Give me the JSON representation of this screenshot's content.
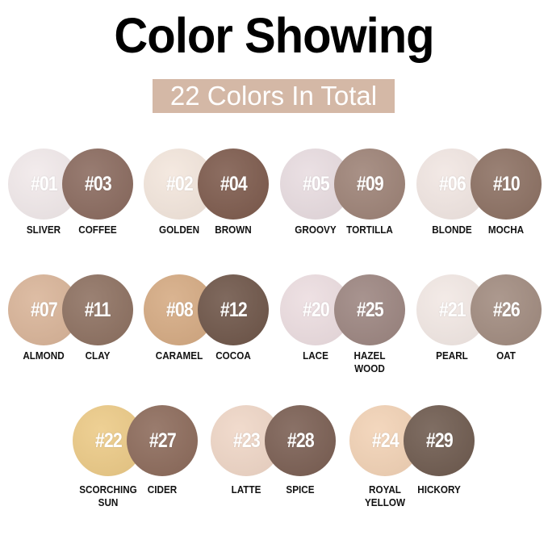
{
  "title": "Color Showing",
  "subtitle": "22 Colors In Total",
  "rows": [
    [
      [
        {
          "code": "#01",
          "name": "SLIVER",
          "color": "#f1e9ea"
        },
        {
          "code": "#03",
          "name": "COFFEE",
          "color": "#8a6a5e"
        }
      ],
      [
        {
          "code": "#02",
          "name": "GOLDEN",
          "color": "#f3e6dc"
        },
        {
          "code": "#04",
          "name": "BROWN",
          "color": "#7d5a4c"
        }
      ],
      [
        {
          "code": "#05",
          "name": "GROOVY",
          "color": "#e8dce0"
        },
        {
          "code": "#09",
          "name": "TORTILLA",
          "color": "#9d8276"
        }
      ],
      [
        {
          "code": "#06",
          "name": "BLONDE",
          "color": "#f1e6e2"
        },
        {
          "code": "#10",
          "name": "MOCHA",
          "color": "#8c7062"
        }
      ]
    ],
    [
      [
        {
          "code": "#07",
          "name": "ALMOND",
          "color": "#d9b498"
        },
        {
          "code": "#11",
          "name": "CLAY",
          "color": "#8d7060"
        }
      ],
      [
        {
          "code": "#08",
          "name": "CARAMEL",
          "color": "#d5aa82"
        },
        {
          "code": "#12",
          "name": "COCOA",
          "color": "#6e5548"
        }
      ],
      [
        {
          "code": "#20",
          "name": "LACE",
          "color": "#ecdde0"
        },
        {
          "code": "#25",
          "name": "HAZEL WOOD",
          "color": "#9c8580"
        }
      ],
      [
        {
          "code": "#21",
          "name": "PEARL",
          "color": "#f2e8e4"
        },
        {
          "code": "#26",
          "name": "OAT",
          "color": "#a18b7f"
        }
      ]
    ],
    [
      [
        {
          "code": "#22",
          "name": "SCORCHING SUN",
          "color": "#ecca86"
        },
        {
          "code": "#27",
          "name": "CIDER",
          "color": "#8c6a5a"
        }
      ],
      [
        {
          "code": "#23",
          "name": "LATTE",
          "color": "#efd6c6"
        },
        {
          "code": "#28",
          "name": "SPICE",
          "color": "#7a5e52"
        }
      ],
      [
        {
          "code": "#24",
          "name": "ROYAL YELLOW",
          "color": "#f2d2b5"
        },
        {
          "code": "#29",
          "name": "HICKORY",
          "color": "#6e5a4e"
        }
      ]
    ]
  ]
}
